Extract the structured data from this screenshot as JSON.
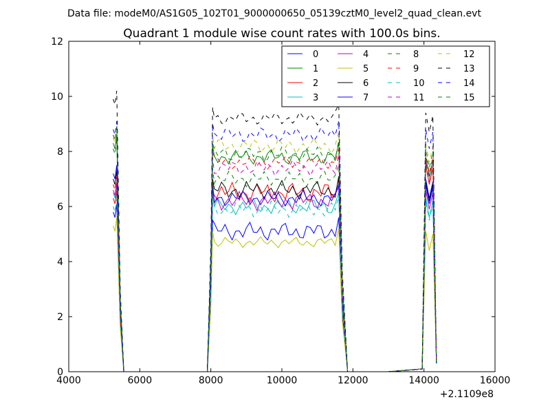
{
  "chart_data": {
    "type": "line",
    "suptitle": "Data file: modeM0/AS1G05_102T01_9000000650_05139cztM0_level2_quad_clean.evt",
    "title": "Quadrant 1 module wise count rates with 100.0s bins.",
    "xlabel": "",
    "ylabel": "",
    "xlim": [
      4000,
      16000
    ],
    "ylim": [
      0,
      12
    ],
    "x_ticks": [
      "4000",
      "6000",
      "8000",
      "10000",
      "12000",
      "14000",
      "16000"
    ],
    "y_ticks": [
      "0",
      "2",
      "4",
      "6",
      "8",
      "10",
      "12"
    ],
    "x_offset_label": "+2.1109e8",
    "legend_location": "upper right",
    "series": [
      {
        "name": "0",
        "color": "#0000ff",
        "dash": "solid",
        "seg1": 5.8,
        "level": 5.1,
        "amp": 0.35,
        "seg3": 6.7
      },
      {
        "name": "1",
        "color": "#008000",
        "dash": "solid",
        "seg1": 8.3,
        "level": 7.8,
        "amp": 0.3,
        "seg3": 7.5
      },
      {
        "name": "2",
        "color": "#ff0000",
        "dash": "solid",
        "seg1": 6.3,
        "level": 6.5,
        "amp": 0.4,
        "seg3": 7.2
      },
      {
        "name": "3",
        "color": "#00bfbf",
        "dash": "solid",
        "seg1": 6.5,
        "level": 6.0,
        "amp": 0.3,
        "seg3": 6.0
      },
      {
        "name": "4",
        "color": "#bf00bf",
        "dash": "solid",
        "seg1": 6.6,
        "level": 6.2,
        "amp": 0.35,
        "seg3": 6.3
      },
      {
        "name": "5",
        "color": "#bfbf00",
        "dash": "solid",
        "seg1": 5.3,
        "level": 4.7,
        "amp": 0.2,
        "seg3": 4.8
      },
      {
        "name": "6",
        "color": "#000000",
        "dash": "solid",
        "seg1": 7.0,
        "level": 6.6,
        "amp": 0.35,
        "seg3": 6.6
      },
      {
        "name": "7",
        "color": "#0000ff",
        "dash": "solid",
        "seg1": 7.2,
        "level": 6.3,
        "amp": 0.3,
        "seg3": 6.5
      },
      {
        "name": "8",
        "color": "#008000",
        "dash": "dashed",
        "seg1": 8.1,
        "level": 7.0,
        "amp": 0.3,
        "seg3": 7.3
      },
      {
        "name": "9",
        "color": "#ff0000",
        "dash": "dashed",
        "seg1": 6.8,
        "level": 7.6,
        "amp": 0.25,
        "seg3": 7.6
      },
      {
        "name": "10",
        "color": "#00bfbf",
        "dash": "dashed",
        "seg1": 6.0,
        "level": 5.9,
        "amp": 0.3,
        "seg3": 5.9
      },
      {
        "name": "11",
        "color": "#bf00bf",
        "dash": "dashed",
        "seg1": 8.6,
        "level": 7.4,
        "amp": 0.3,
        "seg3": 7.4
      },
      {
        "name": "12",
        "color": "#bfbf00",
        "dash": "dashed",
        "seg1": 8.5,
        "level": 8.2,
        "amp": 0.3,
        "seg3": 8.0
      },
      {
        "name": "13",
        "color": "#000000",
        "dash": "dashed",
        "seg1": 9.9,
        "level": 9.2,
        "amp": 0.25,
        "seg3": 9.1
      },
      {
        "name": "14",
        "color": "#0000ff",
        "dash": "dashed",
        "seg1": 8.8,
        "level": 8.6,
        "amp": 0.3,
        "seg3": 8.5
      },
      {
        "name": "15",
        "color": "#008000",
        "dash": "dashed",
        "seg1": 8.6,
        "level": 7.9,
        "amp": 0.3,
        "seg3": 7.8
      }
    ]
  }
}
